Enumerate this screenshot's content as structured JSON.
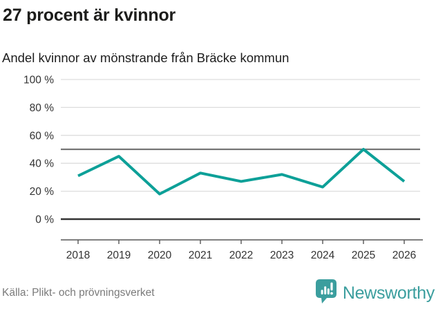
{
  "chart_data": {
    "type": "line",
    "title": "27 procent är kvinnor",
    "subtitle": "Andel kvinnor av mönstrande från Bräcke kommun",
    "categories": [
      "2018",
      "2019",
      "2020",
      "2021",
      "2022",
      "2023",
      "2024",
      "2025",
      "2026"
    ],
    "series": [
      {
        "name": "Andel kvinnor (%)",
        "values": [
          31,
          45,
          18,
          33,
          27,
          32,
          23,
          50,
          27
        ]
      }
    ],
    "xlabel": "",
    "ylabel": "",
    "ylim": [
      0,
      100
    ],
    "yticks": [
      0,
      20,
      40,
      60,
      80,
      100
    ],
    "ytick_labels": [
      "0 %",
      "20 %",
      "40 %",
      "60 %",
      "80 %",
      "100 %"
    ],
    "reference_line_y": 50,
    "grid": "horizontal",
    "legend": "none",
    "line_color": "#0da098"
  },
  "footer": {
    "source": "Källa: Plikt- och prövningsverket",
    "brand": "Newsworthy"
  },
  "colors": {
    "accent_teal": "#0da098",
    "brand_teal": "#3b9e9e",
    "grid_light": "#dddddd",
    "zero_axis": "#333333",
    "reference_gray": "#757575",
    "axis_gray": "#555555",
    "text_dark": "#1d1d1b",
    "text_muted": "#7a7a7a"
  }
}
